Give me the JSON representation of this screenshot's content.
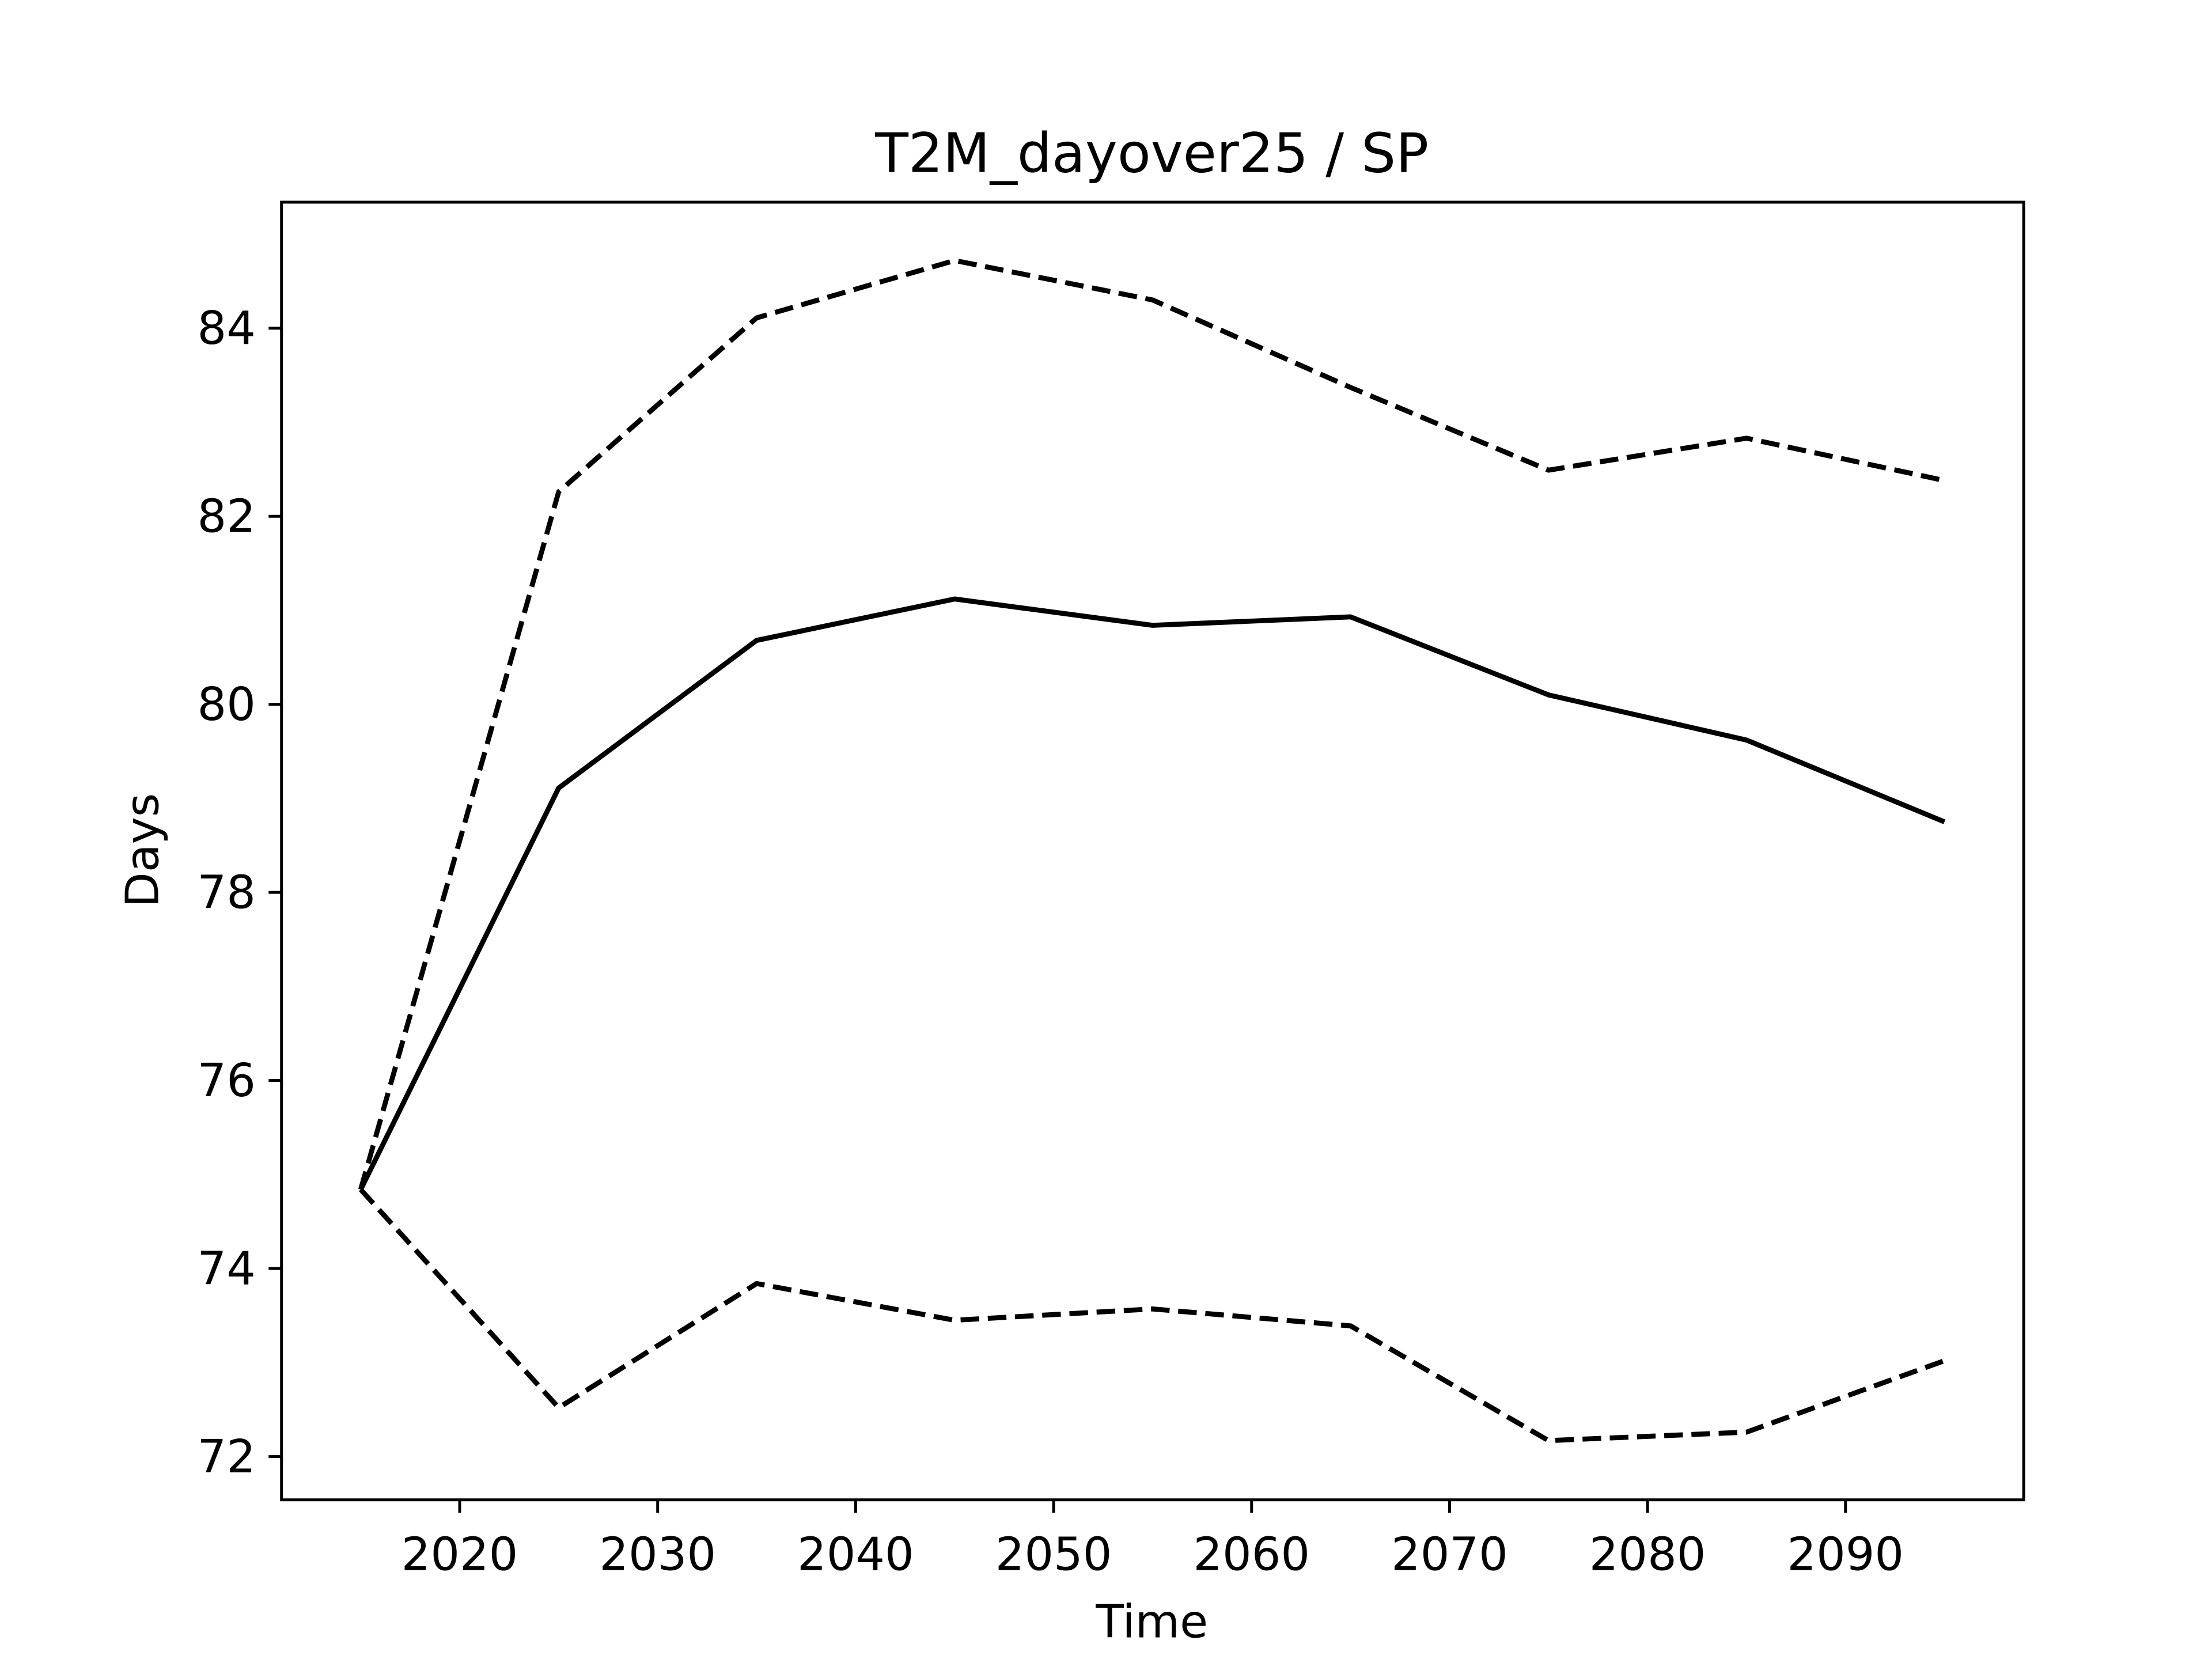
{
  "chart_data": {
    "type": "line",
    "title": "T2M_dayover25 / SP",
    "xlabel": "Time",
    "ylabel": "Days",
    "x": [
      2015,
      2025,
      2035,
      2045,
      2055,
      2065,
      2075,
      2085,
      2095
    ],
    "series": [
      {
        "color": "#000000",
        "dashed": false,
        "values": [
          74.84,
          79.11,
          80.68,
          81.12,
          80.84,
          80.93,
          80.1,
          79.62,
          78.75
        ]
      },
      {
        "color": "#000000",
        "dashed": true,
        "values": [
          74.84,
          82.26,
          84.11,
          84.72,
          84.3,
          83.37,
          82.49,
          82.83,
          82.38
        ]
      },
      {
        "color": "#000000",
        "dashed": true,
        "values": [
          74.84,
          72.52,
          73.84,
          73.45,
          73.57,
          73.39,
          72.17,
          72.26,
          73.02
        ]
      }
    ],
    "xlim": [
      2011,
      2099
    ],
    "ylim": [
      71.54,
      85.34
    ],
    "xticks": [
      2020,
      2030,
      2040,
      2050,
      2060,
      2070,
      2080,
      2090
    ],
    "yticks": [
      72,
      74,
      76,
      78,
      80,
      82,
      84
    ],
    "grid": false
  }
}
